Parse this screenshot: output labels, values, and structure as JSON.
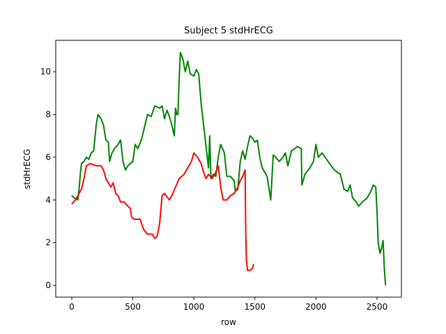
{
  "chart_data": {
    "type": "line",
    "title": "Subject 5 stdHrECG",
    "xlabel": "row",
    "ylabel": "stdHrECG",
    "xlim": [
      -131,
      2700
    ],
    "ylim": [
      -0.55,
      11.47
    ],
    "xticks": [
      0,
      500,
      1000,
      1500,
      2000,
      2500
    ],
    "yticks": [
      0,
      2,
      4,
      6,
      8,
      10
    ],
    "series": [
      {
        "color": "#008000",
        "x": [
          0,
          20,
          50,
          60,
          70,
          80,
          100,
          120,
          140,
          160,
          180,
          200,
          215,
          240,
          260,
          280,
          300,
          310,
          330,
          350,
          380,
          400,
          420,
          440,
          460,
          500,
          520,
          540,
          570,
          600,
          620,
          650,
          680,
          720,
          740,
          760,
          780,
          800,
          820,
          840,
          850,
          860,
          870,
          880,
          890,
          910,
          930,
          950,
          970,
          1000,
          1020,
          1040,
          1060,
          1080,
          1100,
          1120,
          1130,
          1140,
          1160,
          1180,
          1200,
          1220,
          1250,
          1270,
          1300,
          1330,
          1340,
          1360,
          1380,
          1400,
          1420,
          1440,
          1460,
          1480,
          1500,
          1520,
          1540,
          1560,
          1600,
          1630,
          1650,
          1670,
          1700,
          1730,
          1750,
          1770,
          1800,
          1850,
          1880,
          1885,
          1910,
          1950,
          1980,
          2000,
          2020,
          2050,
          2100,
          2150,
          2200,
          2230,
          2260,
          2280,
          2300,
          2330,
          2350,
          2380,
          2420,
          2450,
          2470,
          2490,
          2500,
          2510,
          2525,
          2540,
          2550,
          2560,
          2570
        ],
        "values": [
          4.2,
          4.1,
          4.0,
          4.5,
          5.2,
          5.7,
          5.8,
          6.0,
          5.9,
          6.2,
          6.3,
          7.5,
          8.0,
          7.8,
          7.5,
          6.8,
          6.7,
          5.8,
          6.2,
          6.4,
          6.6,
          6.8,
          5.8,
          5.4,
          5.6,
          5.8,
          6.6,
          6.4,
          6.8,
          7.5,
          8.0,
          7.9,
          8.4,
          8.3,
          8.4,
          7.8,
          8.2,
          7.9,
          7.5,
          7.0,
          8.3,
          8.0,
          8.0,
          9.7,
          10.9,
          10.6,
          10.0,
          10.5,
          9.9,
          9.8,
          10.1,
          9.9,
          8.5,
          7.5,
          6.5,
          5.5,
          7.0,
          5.0,
          5.2,
          5.1,
          6.0,
          6.6,
          6.2,
          5.1,
          5.1,
          4.9,
          4.4,
          4.5,
          5.8,
          6.3,
          5.9,
          6.5,
          7.0,
          6.9,
          6.7,
          6.8,
          6.0,
          5.5,
          5.1,
          4.0,
          6.1,
          6.0,
          5.8,
          6.0,
          6.2,
          5.6,
          6.3,
          6.5,
          6.4,
          4.7,
          5.2,
          5.5,
          5.8,
          6.6,
          6.0,
          6.2,
          5.8,
          5.4,
          5.2,
          4.5,
          4.4,
          4.7,
          4.1,
          3.9,
          3.7,
          3.9,
          4.1,
          4.4,
          4.7,
          4.6,
          3.5,
          2.0,
          1.5,
          1.8,
          2.1,
          0.8,
          0.0
        ]
      },
      {
        "color": "#ff0000",
        "x": [
          0,
          30,
          60,
          80,
          100,
          120,
          150,
          200,
          240,
          260,
          280,
          300,
          320,
          340,
          360,
          380,
          400,
          430,
          460,
          480,
          490,
          510,
          560,
          590,
          620,
          660,
          680,
          700,
          720,
          740,
          760,
          800,
          820,
          850,
          880,
          920,
          950,
          980,
          1000,
          1030,
          1060,
          1080,
          1100,
          1120,
          1150,
          1180,
          1200,
          1220,
          1240,
          1270,
          1300,
          1330,
          1360,
          1380,
          1400,
          1420,
          1425,
          1430,
          1440,
          1460,
          1480,
          1490
        ],
        "values": [
          3.8,
          4.0,
          4.3,
          4.5,
          5.0,
          5.6,
          5.7,
          5.6,
          5.6,
          5.4,
          5.0,
          4.8,
          4.6,
          4.8,
          4.3,
          4.2,
          3.9,
          3.9,
          3.7,
          3.6,
          3.2,
          3.1,
          3.1,
          2.6,
          2.4,
          2.4,
          2.2,
          2.3,
          2.9,
          4.2,
          4.3,
          4.0,
          4.2,
          4.6,
          5.0,
          5.2,
          5.5,
          5.8,
          6.2,
          6.0,
          5.7,
          5.3,
          5.0,
          5.2,
          5.0,
          5.3,
          5.6,
          4.6,
          4.0,
          4.0,
          4.2,
          4.3,
          4.6,
          4.9,
          5.1,
          5.4,
          2.5,
          1.2,
          0.7,
          0.7,
          0.8,
          1.0
        ]
      }
    ]
  }
}
